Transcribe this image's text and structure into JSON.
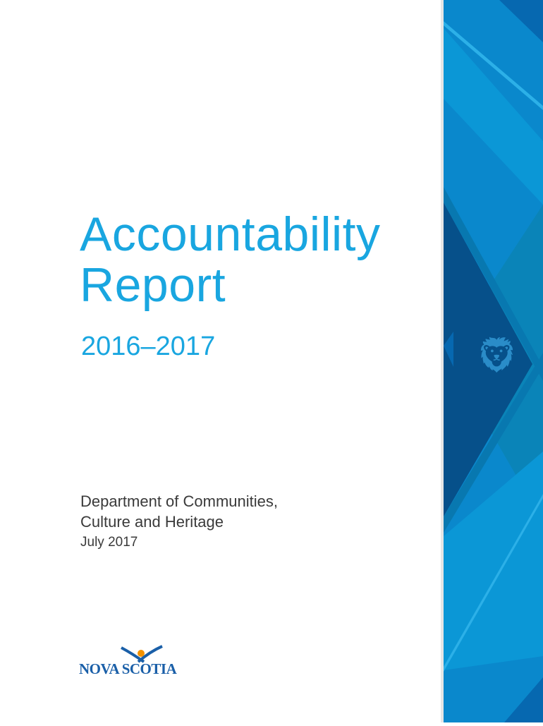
{
  "cover": {
    "title_line1": "Accountability",
    "title_line2": "Report",
    "years": "2016–2017",
    "department_line1": "Department of Communities,",
    "department_line2": "Culture and Heritage",
    "date": "July 2017"
  },
  "logo": {
    "text": "NOVA SCOTIA",
    "accent_color": "#f39200",
    "brand_color": "#1a5fa8"
  },
  "colors": {
    "title": "#19a6e0",
    "panel_base": "#0a88cc",
    "panel_dark": "#06508a"
  },
  "icons": {
    "emblem": "lion-rampant-icon"
  }
}
